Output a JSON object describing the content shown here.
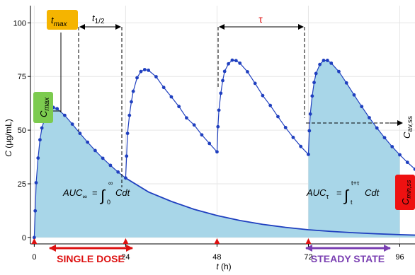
{
  "chart_data": {
    "type": "line",
    "xlabel": "t (h)",
    "ylabel": "C (µg/mL)",
    "xlim": [
      -1,
      100
    ],
    "ylim": [
      -3,
      108
    ],
    "x_ticks": [
      0,
      24,
      48,
      72,
      96
    ],
    "y_ticks": [
      0,
      25,
      50,
      75,
      100
    ],
    "grid": true,
    "dose_times": [
      0,
      24,
      48,
      72
    ],
    "series": [
      {
        "x": [
          0,
          0.25,
          0.5,
          1,
          1.5,
          2,
          3,
          4,
          5,
          6,
          8,
          10,
          12,
          14,
          16,
          18,
          20,
          22,
          24,
          24.25,
          24.5,
          25,
          25.5,
          26,
          27,
          28,
          29,
          30,
          32,
          34,
          36,
          38,
          40,
          42,
          44,
          46,
          48,
          48.25,
          48.5,
          49,
          49.5,
          50,
          51,
          52,
          53,
          54,
          56,
          58,
          60,
          62,
          64,
          66,
          68,
          70,
          72,
          72.25,
          72.5,
          73,
          73.5,
          74,
          75,
          76,
          77,
          78,
          80,
          82,
          84,
          86,
          88,
          90,
          92,
          94,
          96,
          98,
          100
        ],
        "values": [
          0,
          12.4,
          25.5,
          37,
          45.5,
          51,
          56.8,
          59.7,
          60.6,
          60,
          56.9,
          52.8,
          48.5,
          44.4,
          40.5,
          36.9,
          33.6,
          30.5,
          27.7,
          37.9,
          48.5,
          56.9,
          63.2,
          68.1,
          74.4,
          77.3,
          78.2,
          77.9,
          74.9,
          69.9,
          65.5,
          61,
          55.7,
          52.4,
          47.8,
          43.8,
          39.9,
          51.6,
          59.3,
          67.2,
          73.1,
          77.4,
          80.9,
          82.6,
          82.4,
          81.2,
          77.2,
          71.8,
          66.1,
          61.5,
          56.3,
          51.2,
          46.6,
          42.4,
          38.7,
          49.7,
          57.5,
          65.9,
          72.2,
          76.4,
          80.6,
          82.5,
          82.5,
          81.2,
          77.3,
          72,
          66.4,
          61,
          55.8,
          51,
          46.5,
          42.3,
          38.5,
          35,
          31.8
        ]
      },
      {
        "x": [
          24,
          30,
          36,
          42,
          48,
          54,
          60,
          66,
          72,
          78,
          84,
          90,
          96,
          100
        ],
        "values": [
          27.7,
          21.2,
          16.8,
          13.1,
          10.2,
          7.9,
          6.1,
          4.7,
          3.6,
          2.8,
          2.2,
          1.7,
          1.3,
          1.1
        ]
      }
    ],
    "annotations": {
      "tmax": "t",
      "tmax_sub": "max",
      "cmax": "C",
      "cmax_sub": "max",
      "half_life": "t",
      "half_life_sub": "1/2",
      "tau": "τ",
      "cav": "C",
      "cav_sub": "av,ss",
      "cmin": "C",
      "cmin_sub": "min,ss",
      "auc_inf": "AUC",
      "auc_inf_sub": "∞",
      "auc_inf_upper": "∞",
      "auc_inf_lower": "0",
      "auc_tau": "AUC",
      "auc_tau_sub": "τ",
      "auc_tau_upper": "t+τ",
      "auc_tau_lower": "t",
      "integrand": "Cdt",
      "single_dose": "SINGLE DOSE",
      "steady_state": "STEADY STATE"
    }
  },
  "colors": {
    "curve": "#1f3fbf",
    "fill": "#a8d6e8",
    "tmax_box": "#f5b400",
    "cmax_box": "#7ccb4f",
    "cmin_box": "#ee1111",
    "single_dose": "#dd1111",
    "steady_state": "#7a3fb2",
    "dose_marker": "#dd1111",
    "grid": "#e6e6e6"
  }
}
